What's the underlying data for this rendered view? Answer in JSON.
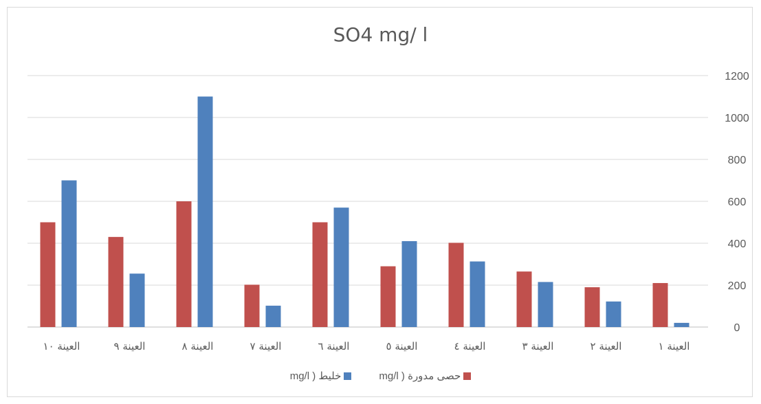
{
  "chart_data": {
    "type": "bar",
    "title": "SO4  mg/ l",
    "categories": [
      "العينة ١",
      "العينة ٢",
      "العينة ٣",
      "العينة ٤",
      "العينة ٥",
      "العينة ٦",
      "العينة ٧",
      "العينة ٨",
      "العينة ٩",
      "العينة ١٠"
    ],
    "series": [
      {
        "name": "حصى مدورة (  mg/l",
        "color": "#c0504d",
        "values": [
          210,
          190,
          265,
          402,
          290,
          500,
          202,
          600,
          430,
          500
        ]
      },
      {
        "name": "خليط (  mg/l",
        "color": "#4f81bd",
        "values": [
          20,
          122,
          215,
          313,
          410,
          570,
          102,
          1100,
          255,
          700
        ]
      }
    ],
    "ylim": [
      0,
      1200
    ],
    "yticks": [
      "0",
      "200",
      "400",
      "600",
      "800",
      "1000",
      "1200"
    ],
    "grid": true,
    "x_direction": "right-to-left",
    "y_axis_side": "right",
    "legend": "bottom"
  }
}
